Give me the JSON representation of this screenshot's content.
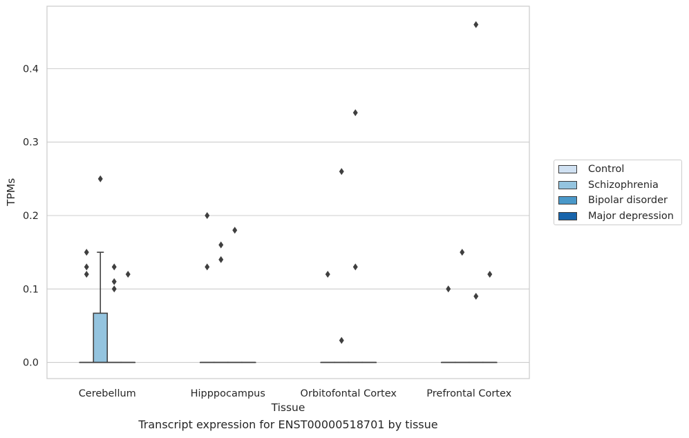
{
  "chart_data": {
    "type": "box",
    "xlabel": "Tissue",
    "ylabel": "TPMs",
    "ylim": [
      -0.022,
      0.485
    ],
    "yticks": [
      0.0,
      0.1,
      0.2,
      0.3,
      0.4
    ],
    "ytick_labels": [
      "0.0",
      "0.1",
      "0.2",
      "0.3",
      "0.4"
    ],
    "grid": "horizontal",
    "legend_position": "right",
    "categories": [
      "Cerebellum",
      "Hipppocampus",
      "Orbitofontal Cortex",
      "Prefrontal Cortex"
    ],
    "series": [
      {
        "name": "Control",
        "color": "#d0e1f2"
      },
      {
        "name": "Schizophrenia",
        "color": "#94c4df"
      },
      {
        "name": "Bipolar disorder",
        "color": "#4a98c9"
      },
      {
        "name": "Major depression",
        "color": "#1764ab"
      }
    ],
    "boxes": [
      {
        "category": "Cerebellum",
        "series": "Control",
        "whisker_low": 0.0,
        "q1": 0.0,
        "median": 0.0,
        "q3": 0.0,
        "whisker_high": 0.0,
        "outliers": [
          0.12,
          0.13,
          0.15
        ]
      },
      {
        "category": "Cerebellum",
        "series": "Schizophrenia",
        "whisker_low": 0.0,
        "q1": 0.0,
        "median": 0.0,
        "q3": 0.067,
        "whisker_high": 0.15,
        "outliers": [
          0.25
        ]
      },
      {
        "category": "Cerebellum",
        "series": "Bipolar disorder",
        "whisker_low": 0.0,
        "q1": 0.0,
        "median": 0.0,
        "q3": 0.0,
        "whisker_high": 0.0,
        "outliers": [
          0.1,
          0.11,
          0.13
        ]
      },
      {
        "category": "Cerebellum",
        "series": "Major depression",
        "whisker_low": 0.0,
        "q1": 0.0,
        "median": 0.0,
        "q3": 0.0,
        "whisker_high": 0.0,
        "outliers": [
          0.12
        ]
      },
      {
        "category": "Hipppocampus",
        "series": "Control",
        "whisker_low": 0.0,
        "q1": 0.0,
        "median": 0.0,
        "q3": 0.0,
        "whisker_high": 0.0,
        "outliers": [
          0.13,
          0.2
        ]
      },
      {
        "category": "Hipppocampus",
        "series": "Schizophrenia",
        "whisker_low": 0.0,
        "q1": 0.0,
        "median": 0.0,
        "q3": 0.0,
        "whisker_high": 0.0,
        "outliers": [
          0.14,
          0.16
        ]
      },
      {
        "category": "Hipppocampus",
        "series": "Bipolar disorder",
        "whisker_low": 0.0,
        "q1": 0.0,
        "median": 0.0,
        "q3": 0.0,
        "whisker_high": 0.0,
        "outliers": [
          0.18
        ]
      },
      {
        "category": "Hipppocampus",
        "series": "Major depression",
        "whisker_low": 0.0,
        "q1": 0.0,
        "median": 0.0,
        "q3": 0.0,
        "whisker_high": 0.0,
        "outliers": []
      },
      {
        "category": "Orbitofontal Cortex",
        "series": "Control",
        "whisker_low": 0.0,
        "q1": 0.0,
        "median": 0.0,
        "q3": 0.0,
        "whisker_high": 0.0,
        "outliers": [
          0.12
        ]
      },
      {
        "category": "Orbitofontal Cortex",
        "series": "Schizophrenia",
        "whisker_low": 0.0,
        "q1": 0.0,
        "median": 0.0,
        "q3": 0.0,
        "whisker_high": 0.0,
        "outliers": [
          0.03,
          0.26
        ]
      },
      {
        "category": "Orbitofontal Cortex",
        "series": "Bipolar disorder",
        "whisker_low": 0.0,
        "q1": 0.0,
        "median": 0.0,
        "q3": 0.0,
        "whisker_high": 0.0,
        "outliers": [
          0.13,
          0.34
        ]
      },
      {
        "category": "Orbitofontal Cortex",
        "series": "Major depression",
        "whisker_low": 0.0,
        "q1": 0.0,
        "median": 0.0,
        "q3": 0.0,
        "whisker_high": 0.0,
        "outliers": []
      },
      {
        "category": "Prefrontal Cortex",
        "series": "Control",
        "whisker_low": 0.0,
        "q1": 0.0,
        "median": 0.0,
        "q3": 0.0,
        "whisker_high": 0.0,
        "outliers": [
          0.1
        ]
      },
      {
        "category": "Prefrontal Cortex",
        "series": "Schizophrenia",
        "whisker_low": 0.0,
        "q1": 0.0,
        "median": 0.0,
        "q3": 0.0,
        "whisker_high": 0.0,
        "outliers": [
          0.15
        ]
      },
      {
        "category": "Prefrontal Cortex",
        "series": "Bipolar disorder",
        "whisker_low": 0.0,
        "q1": 0.0,
        "median": 0.0,
        "q3": 0.0,
        "whisker_high": 0.0,
        "outliers": [
          0.09,
          0.46
        ]
      },
      {
        "category": "Prefrontal Cortex",
        "series": "Major depression",
        "whisker_low": 0.0,
        "q1": 0.0,
        "median": 0.0,
        "q3": 0.0,
        "whisker_high": 0.0,
        "outliers": [
          0.12
        ]
      }
    ]
  },
  "caption": "Transcript expression for ENST00000518701 by tissue"
}
